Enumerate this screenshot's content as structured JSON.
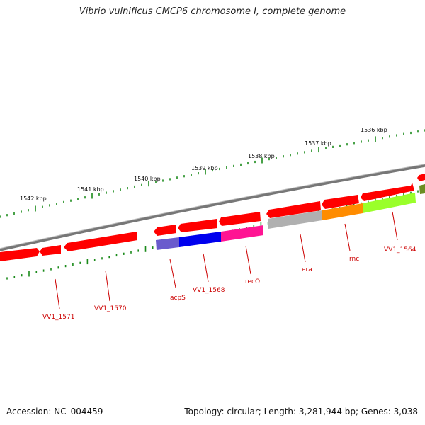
{
  "title": "Vibrio vulnificus CMCP6 chromosome I, complete genome",
  "footer": {
    "accession": "Accession: NC_004459",
    "summary": "Topology: circular; Length: 3,281,944 bp; Genes: 3,038"
  },
  "scale_labels": [
    "1542 kbp",
    "1541 kbp",
    "1540 kbp",
    "1539 kbp",
    "1538 kbp",
    "1537 kbp",
    "1536 kbp"
  ],
  "gene_labels": [
    "VV1_1571",
    "VV1_1570",
    "acpS",
    "VV1_1568",
    "recO",
    "era",
    "rnc",
    "VV1_1564"
  ],
  "colors": {
    "backbone": "#7a7a7a",
    "gene_red": "#ff0000",
    "tick_green": "#1a8a1a",
    "label_red": "#cc0000",
    "acpS": "#6a5acd",
    "VV1_1568": "#0000ee",
    "recO": "#ff1493",
    "era": "#b0b0b0",
    "rnc": "#ff8c00",
    "VV1_1564": "#9aff2a",
    "next_gene": "#6b8e23"
  }
}
